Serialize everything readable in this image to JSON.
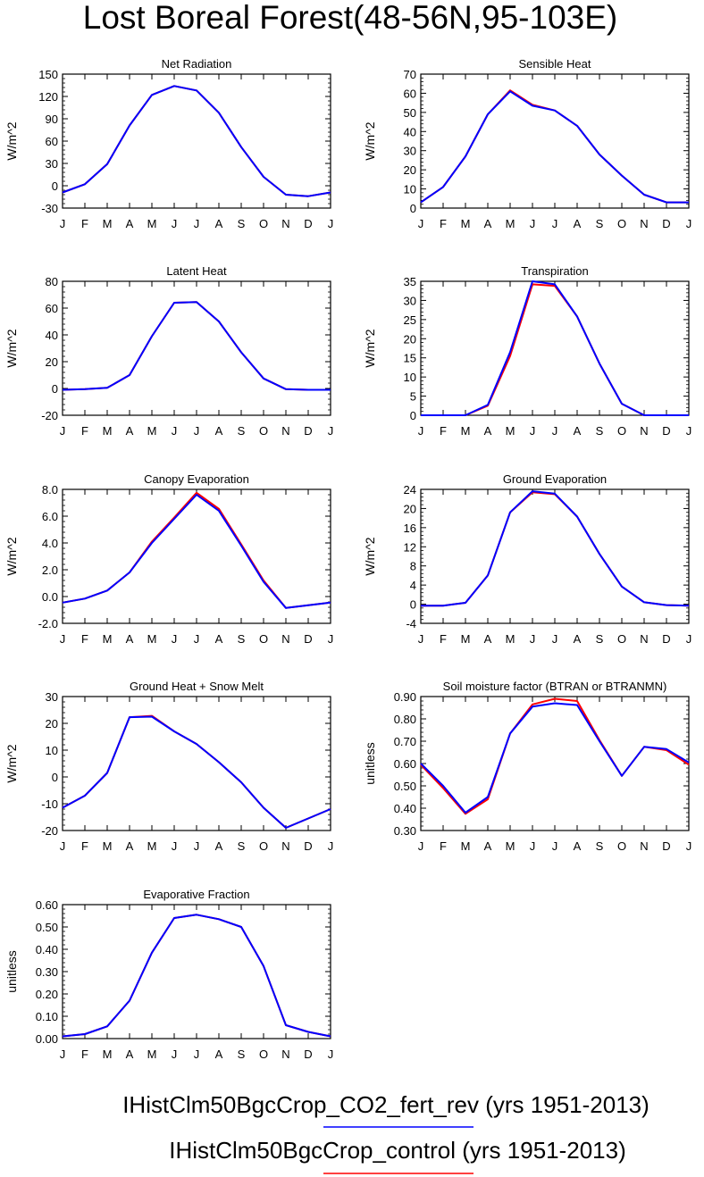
{
  "figure": {
    "title": "Lost Boreal Forest(48-56N,95-103E)",
    "legend": [
      {
        "label": "IHistClm50BgcCrop_CO2_fert_rev (yrs 1951-2013)",
        "color": "#0000ff"
      },
      {
        "label": "IHistClm50BgcCrop_control (yrs 1951-2013)",
        "color": "#ff0000"
      }
    ]
  },
  "colors": {
    "series_a": "#0000ff",
    "series_b": "#ff0000",
    "axis": "#000000"
  },
  "chart_data": [
    {
      "type": "line",
      "title": "Net Radiation",
      "ylabel": "W/m^2",
      "x_ticks": [
        "J",
        "F",
        "M",
        "A",
        "M",
        "J",
        "J",
        "A",
        "S",
        "O",
        "N",
        "D",
        "J"
      ],
      "ylim": [
        -30,
        150
      ],
      "y_ticks": [
        -30,
        0,
        30,
        60,
        90,
        120,
        150
      ],
      "y_tick_labels": [
        "-30",
        "0",
        "30",
        "60",
        "90",
        "120",
        "150"
      ],
      "series": [
        {
          "color": "#ff0000",
          "values": [
            -9,
            2,
            29,
            81,
            122,
            134,
            128,
            98,
            52,
            12,
            -12,
            -14,
            -9
          ]
        },
        {
          "color": "#0000ff",
          "values": [
            -9,
            2,
            29,
            81,
            122,
            134,
            128,
            98,
            52,
            12,
            -12,
            -14,
            -9
          ]
        }
      ]
    },
    {
      "type": "line",
      "title": "Sensible Heat",
      "ylabel": "W/m^2",
      "x_ticks": [
        "J",
        "F",
        "M",
        "A",
        "M",
        "J",
        "J",
        "A",
        "S",
        "O",
        "N",
        "D",
        "J"
      ],
      "ylim": [
        0,
        70
      ],
      "y_ticks": [
        0,
        10,
        20,
        30,
        40,
        50,
        60,
        70
      ],
      "y_tick_labels": [
        "0",
        "10",
        "20",
        "30",
        "40",
        "50",
        "60",
        "70"
      ],
      "series": [
        {
          "color": "#ff0000",
          "values": [
            3,
            11,
            27,
            49,
            61.5,
            54,
            51,
            43,
            28,
            17,
            7,
            3,
            3
          ]
        },
        {
          "color": "#0000ff",
          "values": [
            3,
            11,
            27,
            49,
            61,
            53.5,
            51,
            43,
            28,
            17,
            7,
            3,
            3
          ]
        }
      ]
    },
    {
      "type": "line",
      "title": "Latent Heat",
      "ylabel": "W/m^2",
      "x_ticks": [
        "J",
        "F",
        "M",
        "A",
        "M",
        "J",
        "J",
        "A",
        "S",
        "O",
        "N",
        "D",
        "J"
      ],
      "ylim": [
        -20,
        80
      ],
      "y_ticks": [
        -20,
        0,
        20,
        40,
        60,
        80
      ],
      "y_tick_labels": [
        "-20",
        "0",
        "20",
        "40",
        "60",
        "80"
      ],
      "series": [
        {
          "color": "#ff0000",
          "values": [
            -1,
            -0.5,
            0.5,
            10,
            39,
            64,
            64.5,
            50,
            27,
            7.5,
            -0.5,
            -1,
            -1
          ]
        },
        {
          "color": "#0000ff",
          "values": [
            -1,
            -0.5,
            0.5,
            10,
            39,
            64,
            64.5,
            50,
            27,
            7.5,
            -0.5,
            -1,
            -1
          ]
        }
      ]
    },
    {
      "type": "line",
      "title": "Transpiration",
      "ylabel": "W/m^2",
      "x_ticks": [
        "J",
        "F",
        "M",
        "A",
        "M",
        "J",
        "J",
        "A",
        "S",
        "O",
        "N",
        "D",
        "J"
      ],
      "ylim": [
        0,
        35
      ],
      "y_ticks": [
        0,
        5,
        10,
        15,
        20,
        25,
        30,
        35
      ],
      "y_tick_labels": [
        "0",
        "5",
        "10",
        "15",
        "20",
        "25",
        "30",
        "35"
      ],
      "series": [
        {
          "color": "#ff0000",
          "values": [
            0,
            0,
            0,
            2.5,
            15.5,
            34.2,
            33.8,
            25.8,
            13.5,
            3,
            0,
            0,
            0
          ]
        },
        {
          "color": "#0000ff",
          "values": [
            0,
            0,
            0,
            2.7,
            16.5,
            35,
            34.2,
            25.8,
            13.5,
            3,
            0,
            0,
            0
          ]
        }
      ]
    },
    {
      "type": "line",
      "title": "Canopy Evaporation",
      "ylabel": "W/m^2",
      "x_ticks": [
        "J",
        "F",
        "M",
        "A",
        "M",
        "J",
        "J",
        "A",
        "S",
        "O",
        "N",
        "D",
        "J"
      ],
      "ylim": [
        -2.0,
        8.0
      ],
      "y_ticks": [
        -2,
        0,
        2,
        4,
        6,
        8
      ],
      "y_tick_labels": [
        "-2.0",
        "0.0",
        "2.0",
        "4.0",
        "6.0",
        "8.0"
      ],
      "series": [
        {
          "color": "#ff0000",
          "values": [
            -0.45,
            -0.15,
            0.45,
            1.8,
            4.1,
            5.9,
            7.75,
            6.55,
            3.9,
            1.2,
            -0.85,
            -0.65,
            -0.45
          ]
        },
        {
          "color": "#0000ff",
          "values": [
            -0.45,
            -0.15,
            0.45,
            1.8,
            4.0,
            5.8,
            7.6,
            6.4,
            3.8,
            1.1,
            -0.85,
            -0.65,
            -0.45
          ]
        }
      ]
    },
    {
      "type": "line",
      "title": "Ground Evaporation",
      "ylabel": "W/m^2",
      "x_ticks": [
        "J",
        "F",
        "M",
        "A",
        "M",
        "J",
        "J",
        "A",
        "S",
        "O",
        "N",
        "D",
        "J"
      ],
      "ylim": [
        -4,
        24
      ],
      "y_ticks": [
        -4,
        0,
        4,
        8,
        12,
        16,
        20,
        24
      ],
      "y_tick_labels": [
        "-4",
        "0",
        "4",
        "8",
        "12",
        "16",
        "20",
        "24"
      ],
      "series": [
        {
          "color": "#ff0000",
          "values": [
            -0.3,
            -0.3,
            0.3,
            6,
            19.2,
            23.4,
            23,
            18.3,
            10.5,
            3.7,
            0.4,
            -0.2,
            -0.3
          ]
        },
        {
          "color": "#0000ff",
          "values": [
            -0.3,
            -0.3,
            0.3,
            6,
            19.2,
            23.6,
            23.1,
            18.3,
            10.5,
            3.7,
            0.4,
            -0.2,
            -0.3
          ]
        }
      ]
    },
    {
      "type": "line",
      "title": "Ground Heat + Snow Melt",
      "ylabel": "W/m^2",
      "x_ticks": [
        "J",
        "F",
        "M",
        "A",
        "M",
        "J",
        "J",
        "A",
        "S",
        "O",
        "N",
        "D",
        "J"
      ],
      "ylim": [
        -20,
        30
      ],
      "y_ticks": [
        -20,
        -10,
        0,
        10,
        20,
        30
      ],
      "y_tick_labels": [
        "-20",
        "-10",
        "0",
        "10",
        "20",
        "30"
      ],
      "series": [
        {
          "color": "#ff0000",
          "values": [
            -11.5,
            -7,
            1.5,
            22.3,
            22.8,
            17,
            12.3,
            5.5,
            -2,
            -11.5,
            -19,
            -15.5,
            -12
          ]
        },
        {
          "color": "#0000ff",
          "values": [
            -11.5,
            -7,
            1.5,
            22.3,
            22.5,
            17,
            12.3,
            5.5,
            -2,
            -11.5,
            -19,
            -15.5,
            -12
          ]
        }
      ]
    },
    {
      "type": "line",
      "title": "Soil moisture factor (BTRAN or BTRANMN)",
      "ylabel": "unitless",
      "x_ticks": [
        "J",
        "F",
        "M",
        "A",
        "M",
        "J",
        "J",
        "A",
        "S",
        "O",
        "N",
        "D",
        "J"
      ],
      "ylim": [
        0.3,
        0.9
      ],
      "y_ticks": [
        0.3,
        0.4,
        0.5,
        0.6,
        0.7,
        0.8,
        0.9
      ],
      "y_tick_labels": [
        "0.30",
        "0.40",
        "0.50",
        "0.60",
        "0.70",
        "0.80",
        "0.90"
      ],
      "series": [
        {
          "color": "#ff0000",
          "values": [
            0.595,
            0.49,
            0.375,
            0.44,
            0.735,
            0.865,
            0.89,
            0.88,
            0.705,
            0.545,
            0.675,
            0.66,
            0.595
          ]
        },
        {
          "color": "#0000ff",
          "values": [
            0.6,
            0.5,
            0.38,
            0.45,
            0.735,
            0.855,
            0.87,
            0.862,
            0.7,
            0.545,
            0.675,
            0.665,
            0.605
          ]
        }
      ]
    },
    {
      "type": "line",
      "title": "Evaporative Fraction",
      "ylabel": "unitless",
      "x_ticks": [
        "J",
        "F",
        "M",
        "A",
        "M",
        "J",
        "J",
        "A",
        "S",
        "O",
        "N",
        "D",
        "J"
      ],
      "ylim": [
        0.0,
        0.6
      ],
      "y_ticks": [
        0,
        0.1,
        0.2,
        0.3,
        0.4,
        0.5,
        0.6
      ],
      "y_tick_labels": [
        "0.00",
        "0.10",
        "0.20",
        "0.30",
        "0.40",
        "0.50",
        "0.60"
      ],
      "series": [
        {
          "color": "#ff0000",
          "values": [
            0.01,
            0.02,
            0.055,
            0.17,
            0.385,
            0.54,
            0.555,
            0.535,
            0.5,
            0.325,
            0.06,
            0.03,
            0.01
          ]
        },
        {
          "color": "#0000ff",
          "values": [
            0.01,
            0.02,
            0.055,
            0.17,
            0.385,
            0.54,
            0.555,
            0.535,
            0.5,
            0.325,
            0.06,
            0.03,
            0.01
          ]
        }
      ]
    }
  ]
}
